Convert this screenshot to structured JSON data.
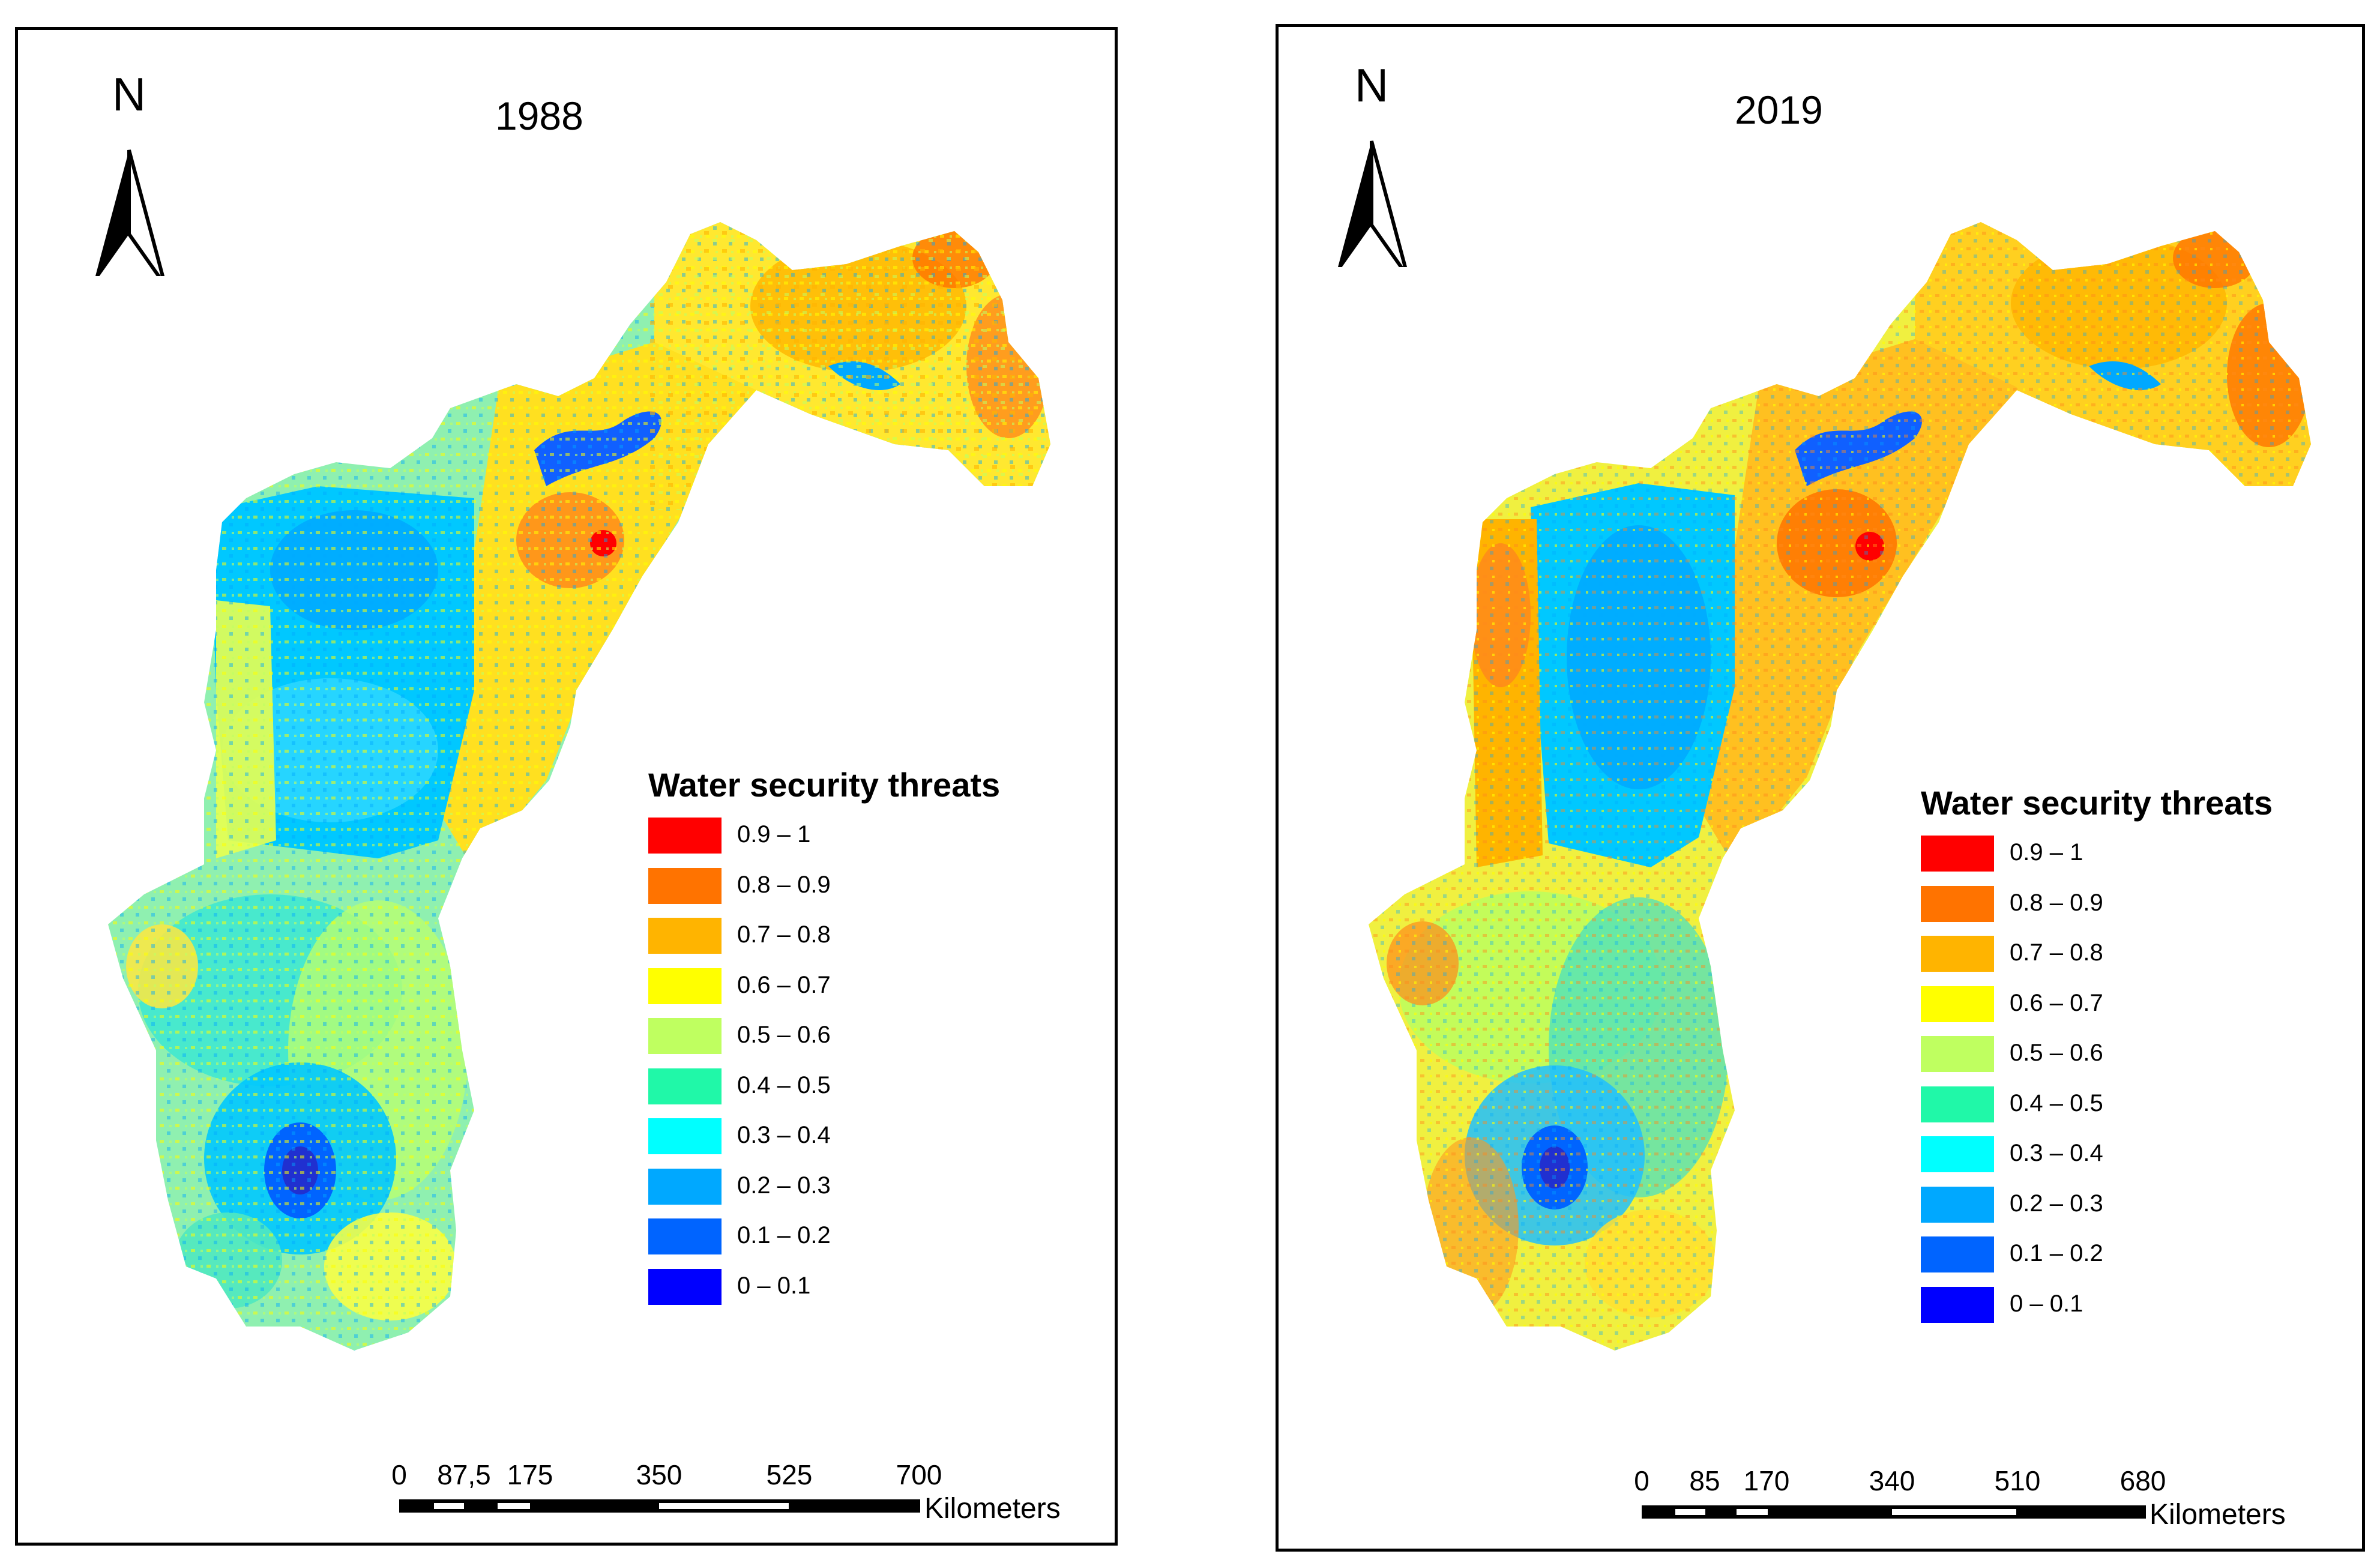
{
  "maps": [
    {
      "year": "1988",
      "north_label": "N",
      "legend": {
        "title": "Water security threats",
        "classes": [
          {
            "label": "0.9 – 1",
            "color": "#ff0000"
          },
          {
            "label": "0.8 – 0.9",
            "color": "#ff7300"
          },
          {
            "label": "0.7 – 0.8",
            "color": "#ffb400"
          },
          {
            "label": "0.6 – 0.7",
            "color": "#ffff00"
          },
          {
            "label": "0.5 – 0.6",
            "color": "#bfff60"
          },
          {
            "label": "0.4 – 0.5",
            "color": "#20f8a8"
          },
          {
            "label": "0.3 – 0.4",
            "color": "#00ffff"
          },
          {
            "label": "0.2 – 0.3",
            "color": "#00a8ff"
          },
          {
            "label": "0.1 – 0.2",
            "color": "#0064ff"
          },
          {
            "label": "0 – 0.1",
            "color": "#0000ff"
          }
        ]
      },
      "scale": {
        "ticks": [
          "0",
          "87,5",
          "175",
          "350",
          "525",
          "700"
        ],
        "units": "Kilometers"
      }
    },
    {
      "year": "2019",
      "north_label": "N",
      "legend": {
        "title": "Water security threats",
        "classes": [
          {
            "label": "0.9 – 1",
            "color": "#ff0000"
          },
          {
            "label": "0.8 – 0.9",
            "color": "#ff7300"
          },
          {
            "label": "0.7 – 0.8",
            "color": "#ffb400"
          },
          {
            "label": "0.6 – 0.7",
            "color": "#ffff00"
          },
          {
            "label": "0.5 – 0.6",
            "color": "#bfff60"
          },
          {
            "label": "0.4 – 0.5",
            "color": "#20f8a8"
          },
          {
            "label": "0.3 – 0.4",
            "color": "#00ffff"
          },
          {
            "label": "0.2 – 0.3",
            "color": "#00a8ff"
          },
          {
            "label": "0.1 – 0.2",
            "color": "#0064ff"
          },
          {
            "label": "0 – 0.1",
            "color": "#0000ff"
          }
        ]
      },
      "scale": {
        "ticks": [
          "0",
          "85",
          "170",
          "340",
          "510",
          "680"
        ],
        "units": "Kilometers"
      }
    }
  ]
}
